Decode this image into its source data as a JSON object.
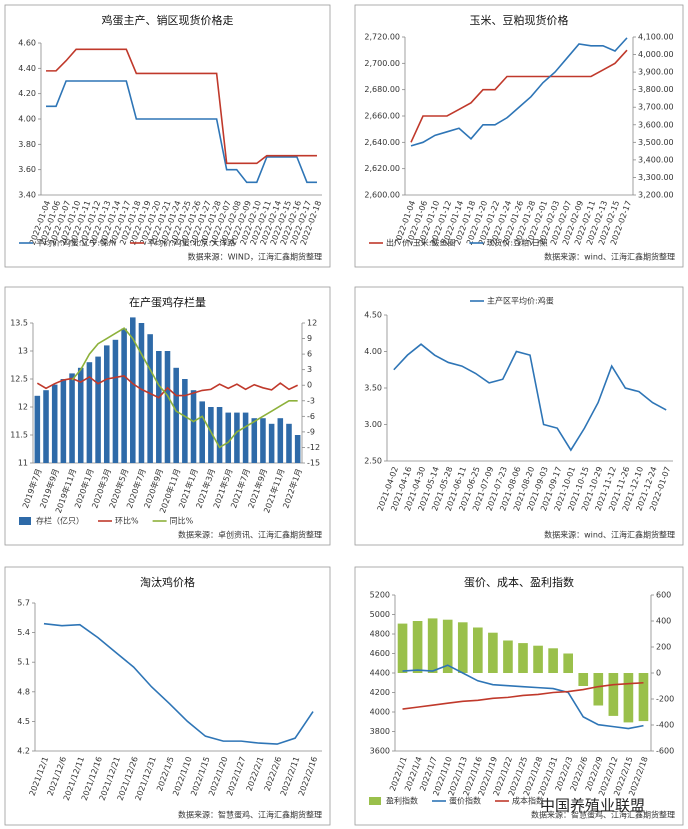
{
  "chart_data": [
    {
      "type": "line",
      "title": "鸡蛋主产、销区现货价格走",
      "source": "数据来源：WIND，江海汇鑫期货整理",
      "legend": "bottom",
      "grid": false,
      "categories": [
        "2022-01-04",
        "2022-01-06",
        "2022-01-07",
        "2022-01-10",
        "2022-01-11",
        "2022-01-12",
        "2022-01-13",
        "2022-01-14",
        "2022-01-17",
        "2022-01-18",
        "2022-01-19",
        "2022-01-20",
        "2022-01-21",
        "2022-01-24",
        "2022-01-25",
        "2022-01-26",
        "2022-01-27",
        "2022-01-28",
        "2022-02-07",
        "2022-02-08",
        "2022-02-09",
        "2022-02-10",
        "2022-02-11",
        "2022-02-14",
        "2022-02-15",
        "2022-02-16",
        "2022-02-17",
        "2022-02-18"
      ],
      "ylim": [
        3.4,
        4.6
      ],
      "yticks": [
        {
          "value": 3.4,
          "label": "3.40"
        },
        {
          "value": 3.6,
          "label": "3.60"
        },
        {
          "value": 3.8,
          "label": "3.80"
        },
        {
          "value": 4.0,
          "label": "4.00"
        },
        {
          "value": 4.2,
          "label": "4.20"
        },
        {
          "value": 4.4,
          "label": "4.40"
        },
        {
          "value": 4.6,
          "label": "4.60"
        }
      ],
      "series": [
        {
          "name": "平均价:鸡蛋:辽宁:锦州",
          "type": "line",
          "color": "#2e75b6",
          "values": [
            4.1,
            4.1,
            4.3,
            4.3,
            4.3,
            4.3,
            4.3,
            4.3,
            4.3,
            4.0,
            4.0,
            4.0,
            4.0,
            4.0,
            4.0,
            4.0,
            4.0,
            4.0,
            3.6,
            3.6,
            3.5,
            3.5,
            3.7,
            3.7,
            3.7,
            3.7,
            3.5,
            3.5
          ]
        },
        {
          "name": "平均价:鸡蛋:北京:大洋路",
          "type": "line",
          "color": "#c0392b",
          "values": [
            4.38,
            4.38,
            4.46,
            4.55,
            4.55,
            4.55,
            4.55,
            4.55,
            4.55,
            4.36,
            4.36,
            4.36,
            4.36,
            4.36,
            4.36,
            4.36,
            4.36,
            4.36,
            3.65,
            3.65,
            3.65,
            3.65,
            3.71,
            3.71,
            3.71,
            3.71,
            3.71,
            3.71
          ]
        }
      ]
    },
    {
      "type": "line",
      "title": "玉米、豆粕现货价格",
      "source": "数据来源：wind、江海汇鑫期货整理",
      "legend": "bottom",
      "grid": false,
      "categories": [
        "2022-01-04",
        "2022-01-06",
        "2022-01-10",
        "2022-01-12",
        "2022-01-14",
        "2022-01-18",
        "2022-01-20",
        "2022-01-22",
        "2022-01-24",
        "2022-01-26",
        "2022-01-28",
        "2022-02-01",
        "2022-02-03",
        "2022-02-07",
        "2022-02-09",
        "2022-02-11",
        "2022-02-13",
        "2022-02-15",
        "2022-02-17"
      ],
      "ylim": [
        2600,
        2720
      ],
      "yticks": [
        {
          "value": 2600,
          "label": "2,600.00"
        },
        {
          "value": 2620,
          "label": "2,620.00"
        },
        {
          "value": 2640,
          "label": "2,640.00"
        },
        {
          "value": 2660,
          "label": "2,660.00"
        },
        {
          "value": 2680,
          "label": "2,680.00"
        },
        {
          "value": 2700,
          "label": "2,700.00"
        },
        {
          "value": 2720,
          "label": "2,720.00"
        }
      ],
      "y2lim": [
        3200,
        4100
      ],
      "y2ticks": [
        {
          "value": 3200,
          "label": "3,200.00"
        },
        {
          "value": 3300,
          "label": "3,300.00"
        },
        {
          "value": 3400,
          "label": "3,400.00"
        },
        {
          "value": 3500,
          "label": "3,500.00"
        },
        {
          "value": 3600,
          "label": "3,600.00"
        },
        {
          "value": 3700,
          "label": "3,700.00"
        },
        {
          "value": 3800,
          "label": "3,800.00"
        },
        {
          "value": 3900,
          "label": "3,900.00"
        },
        {
          "value": 4000,
          "label": "4,000.00"
        },
        {
          "value": 4100,
          "label": "4,100.00"
        }
      ],
      "series": [
        {
          "name": "出厂价:玉米:鲅鱼圈",
          "type": "line",
          "color": "#c0392b",
          "values": [
            2640,
            2660,
            2660,
            2660,
            2665,
            2670,
            2680,
            2680,
            2690,
            2690,
            2690,
            2690,
            2690,
            2690,
            2690,
            2690,
            2695,
            2700,
            2710
          ]
        },
        {
          "name": "现货价:豆粕:日照",
          "type": "line",
          "axis": "y2",
          "color": "#2e75b6",
          "values": [
            3480,
            3500,
            3540,
            3560,
            3580,
            3520,
            3600,
            3600,
            3640,
            3700,
            3760,
            3840,
            3900,
            3980,
            4060,
            4050,
            4050,
            4020,
            4095
          ]
        }
      ]
    },
    {
      "type": "combo",
      "title": "在产蛋鸡存栏量",
      "source": "数据来源：卓创资讯、江海汇鑫期货整理",
      "legend": "bottom",
      "grid": false,
      "categories": [
        "2019年7月",
        null,
        "2019年9月",
        null,
        "2019年11月",
        null,
        "2020年1月",
        null,
        "2020年3月",
        null,
        "2020年5月",
        null,
        "2020年7月",
        null,
        "2020年9月",
        null,
        "2020年11月",
        null,
        "2021年1月",
        null,
        "2021年3月",
        null,
        "2021年5月",
        null,
        "2021年7月",
        null,
        "2021年9月",
        null,
        "2021年11月",
        null,
        "2022年1月"
      ],
      "ylim": [
        11,
        13.5
      ],
      "yticks": [
        11,
        11.5,
        12,
        12.5,
        13,
        13.5
      ],
      "y2lim": [
        -15,
        12
      ],
      "y2ticks": [
        -15,
        -12,
        -9,
        -6,
        -3,
        0,
        3,
        6,
        9,
        12
      ],
      "series": [
        {
          "name": "存栏（亿只）",
          "type": "bar",
          "color": "#2e6aa8",
          "values": [
            12.2,
            12.3,
            12.4,
            12.5,
            12.6,
            12.7,
            12.8,
            12.9,
            13.1,
            13.2,
            13.4,
            13.6,
            13.5,
            13.3,
            13.0,
            13.0,
            12.7,
            12.5,
            12.3,
            12.1,
            12.0,
            12.0,
            11.9,
            11.9,
            11.9,
            11.8,
            11.8,
            11.7,
            11.8,
            11.7,
            11.5
          ]
        },
        {
          "name": "环比%",
          "type": "line",
          "axis": "y2",
          "color": "#c0392b",
          "values": [
            0.4,
            -0.6,
            0.3,
            1.0,
            1.3,
            0.6,
            1.6,
            0.3,
            1.2,
            1.5,
            1.8,
            0.3,
            -0.8,
            -1.6,
            -2.4,
            -0.5,
            -2.0,
            -2.0,
            -1.5,
            -1.0,
            -0.8,
            0.2,
            -0.6,
            0.2,
            -0.8,
            0.1,
            -0.5,
            -0.9,
            0.4,
            -0.8,
            0.0
          ]
        },
        {
          "name": "同比%",
          "type": "line",
          "axis": "y2",
          "color": "#8db13b",
          "values": [
            null,
            null,
            null,
            null,
            1,
            3,
            6,
            8,
            9,
            10,
            11,
            9,
            6,
            3,
            0,
            -2,
            -5,
            -6,
            -7,
            -6,
            -9,
            -12,
            -11,
            -9,
            -8,
            -7,
            -6,
            -5,
            -4,
            -3,
            -3
          ]
        }
      ]
    },
    {
      "type": "line",
      "source": "数据来源：wind、江海汇鑫期货整理",
      "legend": "top",
      "grid": false,
      "categories": [
        "2021-04-02",
        "2021-04-16",
        "2021-04-30",
        "2021-05-14",
        "2021-05-28",
        "2021-06-11",
        "2021-06-25",
        "2021-07-09",
        "2021-07-23",
        "2021-08-06",
        "2021-08-20",
        "2021-09-03",
        "2021-09-17",
        "2021-10-01",
        "2021-10-15",
        "2021-10-29",
        "2021-11-12",
        "2021-11-26",
        "2021-12-10",
        "2021-12-24",
        "2022-01-07"
      ],
      "ylim": [
        2.5,
        4.5
      ],
      "yticks": [
        {
          "value": 2.5,
          "label": "2.50"
        },
        {
          "value": 3.0,
          "label": "3.00"
        },
        {
          "value": 3.5,
          "label": "3.50"
        },
        {
          "value": 4.0,
          "label": "4.00"
        },
        {
          "value": 4.5,
          "label": "4.50"
        }
      ],
      "series": [
        {
          "name": "主产区平均价:鸡蛋",
          "type": "line",
          "color": "#2e75b6",
          "values": [
            3.75,
            3.95,
            4.1,
            3.95,
            3.85,
            3.8,
            3.7,
            3.57,
            3.62,
            4.0,
            3.95,
            3.0,
            2.95,
            2.65,
            2.95,
            3.3,
            3.8,
            3.5,
            3.45,
            3.3,
            3.2
          ]
        }
      ]
    },
    {
      "type": "line",
      "title": "淘汰鸡价格",
      "source": "数据来源：智慧蛋鸡、江海汇鑫期货整理",
      "legend": "none",
      "grid": false,
      "categories": [
        "2021/12/1",
        "2021/12/6",
        "2021/12/11",
        "2021/12/16",
        "2021/12/21",
        "2021/12/26",
        "2021/12/31",
        "2022/1/5",
        "2022/1/10",
        "2022/1/15",
        "2022/1/20",
        "2022/1/27",
        "2022/2/1",
        "2022/2/6",
        "2022/2/11",
        "2022/2/16"
      ],
      "ylim": [
        4.2,
        5.7
      ],
      "yticks": [
        4.2,
        4.5,
        4.8,
        5.1,
        5.4,
        5.7
      ],
      "series": [
        {
          "name": "淘汰鸡价格",
          "type": "line",
          "color": "#2e75b6",
          "values": [
            5.49,
            5.47,
            5.48,
            5.35,
            5.2,
            5.05,
            4.85,
            4.68,
            4.5,
            4.35,
            4.3,
            4.3,
            4.28,
            4.27,
            4.33,
            4.6
          ]
        }
      ]
    },
    {
      "type": "combo",
      "title": "蛋价、成本、盈利指数",
      "source": "数据来源：智慧蛋鸡、江海汇鑫期货整理",
      "legend": "bottom",
      "grid": false,
      "categories": [
        "2022/1/1",
        "2022/1/4",
        "2022/1/7",
        "2022/1/10",
        "2022/1/13",
        "2022/1/16",
        "2022/1/19",
        "2022/1/22",
        "2022/1/25",
        "2022/1/28",
        "2022/1/31",
        "2022/2/3",
        "2022/2/6",
        "2022/2/9",
        "2022/2/12",
        "2022/2/15",
        "2022/2/18"
      ],
      "ylim": [
        3600,
        5200
      ],
      "yticks": [
        3600,
        3800,
        4000,
        4200,
        4400,
        4600,
        4800,
        5000,
        5200
      ],
      "y2lim": [
        -600,
        600
      ],
      "y2ticks": [
        -600,
        -400,
        -200,
        0,
        200,
        400,
        600
      ],
      "series": [
        {
          "name": "盈利指数",
          "type": "bar",
          "axis": "y2",
          "color": "#9ac04b",
          "values": [
            380,
            400,
            420,
            410,
            390,
            350,
            310,
            250,
            230,
            210,
            190,
            150,
            -100,
            -250,
            -330,
            -380,
            -370
          ]
        },
        {
          "name": "蛋价指数",
          "type": "line",
          "color": "#2e75b6",
          "values": [
            4420,
            4430,
            4420,
            4480,
            4400,
            4320,
            4280,
            4270,
            4260,
            4250,
            4240,
            4200,
            3950,
            3870,
            3850,
            3830,
            3860
          ]
        },
        {
          "name": "成本指数",
          "type": "line",
          "color": "#c0392b",
          "values": [
            4030,
            4050,
            4070,
            4090,
            4110,
            4120,
            4140,
            4150,
            4170,
            4180,
            4200,
            4210,
            4230,
            4260,
            4280,
            4290,
            4300
          ]
        }
      ]
    }
  ],
  "watermark": "中国养殖业联盟"
}
